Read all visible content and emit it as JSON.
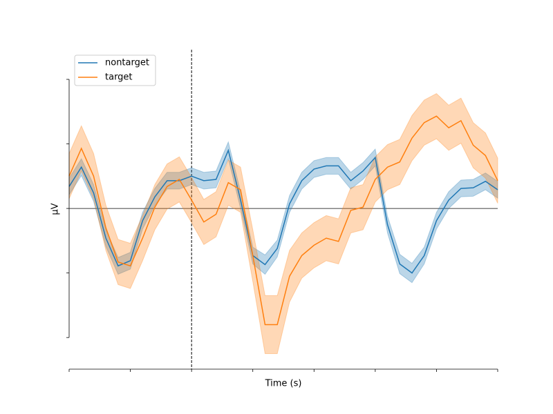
{
  "chart_data": {
    "type": "line",
    "xlabel": "Time (s)",
    "ylabel": "µV",
    "x": [
      -0.2,
      -0.18,
      -0.16,
      -0.14,
      -0.12,
      -0.1,
      -0.08,
      -0.06,
      -0.04,
      -0.02,
      0,
      0.02,
      0.04,
      0.06,
      0.08,
      0.1,
      0.12,
      0.14,
      0.16,
      0.18,
      0.2,
      0.22,
      0.24,
      0.26,
      0.28,
      0.3,
      0.32,
      0.34,
      0.36,
      0.38,
      0.4,
      0.42,
      0.44,
      0.46,
      0.48,
      0.5
    ],
    "series": [
      {
        "name": "nontarget",
        "color": "#1f77b4",
        "values": [
          0.34,
          0.64,
          0.24,
          -0.46,
          -0.89,
          -0.81,
          -0.19,
          0.18,
          0.43,
          0.43,
          0.5,
          0.43,
          0.45,
          0.9,
          0.13,
          -0.73,
          -0.87,
          -0.62,
          0.07,
          0.43,
          0.61,
          0.66,
          0.66,
          0.43,
          0.58,
          0.79,
          -0.25,
          -0.86,
          -1.0,
          -0.73,
          -0.19,
          0.13,
          0.31,
          0.32,
          0.42,
          0.29
        ],
        "upper": [
          0.47,
          0.77,
          0.37,
          -0.33,
          -0.76,
          -0.68,
          -0.06,
          0.31,
          0.56,
          0.56,
          0.63,
          0.56,
          0.58,
          1.03,
          0.26,
          -0.6,
          -0.72,
          -0.49,
          0.2,
          0.56,
          0.74,
          0.79,
          0.79,
          0.56,
          0.71,
          0.92,
          -0.12,
          -0.71,
          -0.85,
          -0.6,
          -0.06,
          0.26,
          0.44,
          0.45,
          0.55,
          0.42
        ],
        "lower": [
          0.21,
          0.51,
          0.11,
          -0.59,
          -1.02,
          -0.94,
          -0.32,
          0.05,
          0.3,
          0.3,
          0.37,
          0.3,
          0.32,
          0.77,
          0.0,
          -0.86,
          -1.02,
          -0.75,
          -0.06,
          0.3,
          0.48,
          0.53,
          0.53,
          0.3,
          0.45,
          0.66,
          -0.38,
          -1.01,
          -1.15,
          -0.86,
          -0.32,
          0.0,
          0.18,
          0.19,
          0.29,
          0.16
        ]
      },
      {
        "name": "target",
        "color": "#ff7f0e",
        "values": [
          0.5,
          0.93,
          0.5,
          -0.3,
          -0.83,
          -0.89,
          -0.46,
          0.02,
          0.34,
          0.45,
          0.13,
          -0.21,
          -0.09,
          0.4,
          0.29,
          -0.73,
          -1.8,
          -1.8,
          -1.05,
          -0.73,
          -0.57,
          -0.46,
          -0.51,
          -0.03,
          0.02,
          0.45,
          0.64,
          0.72,
          1.09,
          1.33,
          1.43,
          1.25,
          1.36,
          0.98,
          0.82,
          0.43
        ],
        "upper": [
          0.85,
          1.28,
          0.85,
          0.05,
          -0.48,
          -0.54,
          -0.11,
          0.37,
          0.69,
          0.8,
          0.48,
          0.14,
          0.26,
          0.75,
          0.64,
          -0.33,
          -1.35,
          -1.35,
          -0.65,
          -0.38,
          -0.22,
          -0.11,
          -0.16,
          0.32,
          0.37,
          0.8,
          0.99,
          1.07,
          1.44,
          1.68,
          1.78,
          1.6,
          1.71,
          1.33,
          1.17,
          0.78
        ],
        "lower": [
          0.15,
          0.58,
          0.15,
          -0.65,
          -1.18,
          -1.24,
          -0.81,
          -0.33,
          -0.01,
          0.1,
          -0.22,
          -0.56,
          -0.44,
          0.05,
          -0.06,
          -1.13,
          -2.25,
          -2.25,
          -1.45,
          -1.08,
          -0.92,
          -0.81,
          -0.86,
          -0.38,
          -0.33,
          0.1,
          0.29,
          0.37,
          0.74,
          0.98,
          1.08,
          0.9,
          1.01,
          0.63,
          0.47,
          0.08
        ]
      }
    ],
    "xlim": [
      -0.2,
      0.5
    ],
    "xticks": [
      -0.2,
      -0.1,
      0,
      0.1,
      0.2,
      0.3,
      0.4,
      0.5
    ],
    "ylim": [
      -2.49,
      2.46
    ],
    "yticks": [
      -2,
      -1,
      0,
      1,
      2
    ],
    "vline": 0,
    "hline": 0,
    "legend": "upper left"
  }
}
